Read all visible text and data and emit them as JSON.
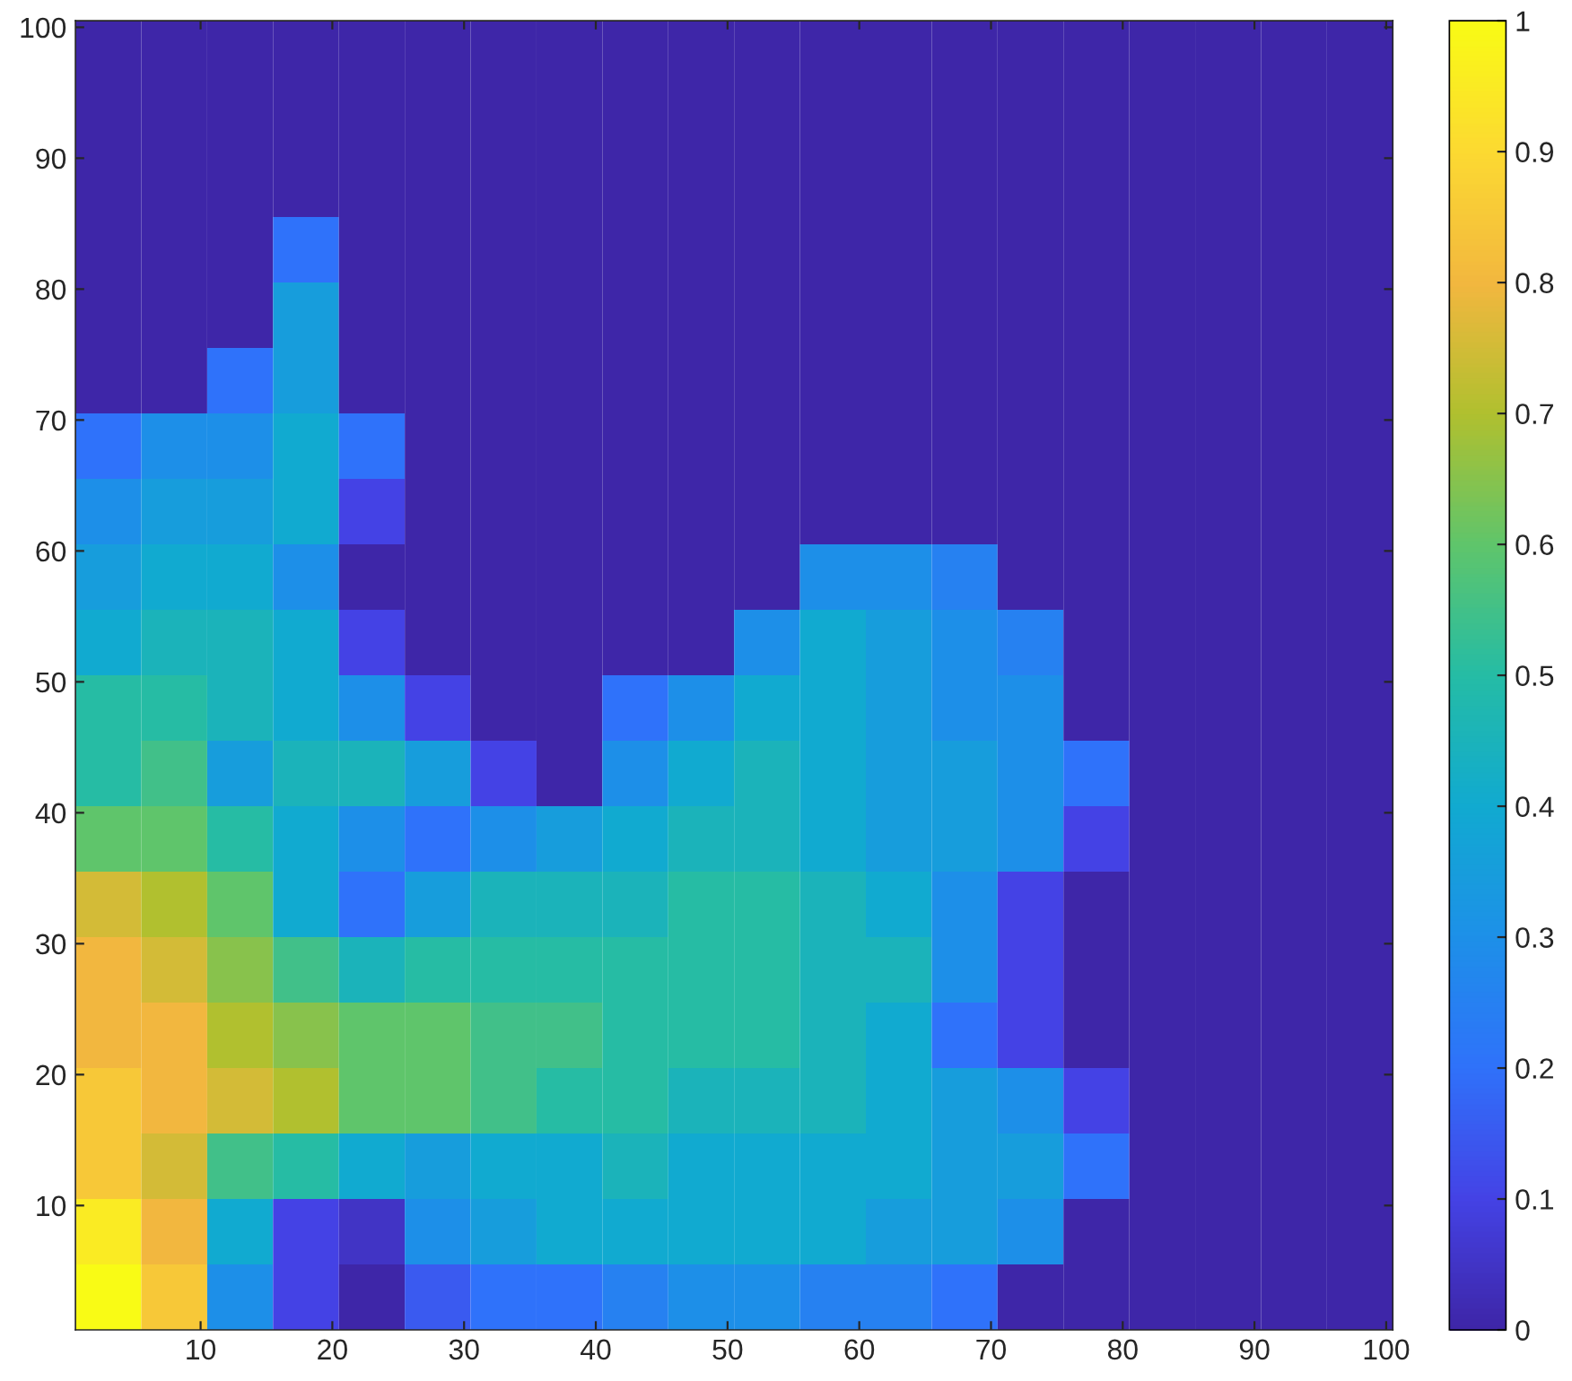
{
  "chart_data": {
    "type": "heatmap",
    "xlim": [
      0.5,
      100.5
    ],
    "ylim": [
      0.5,
      100.5
    ],
    "xticks": [
      10,
      20,
      30,
      40,
      50,
      60,
      70,
      80,
      90,
      100
    ],
    "yticks": [
      10,
      20,
      30,
      40,
      50,
      60,
      70,
      80,
      90,
      100
    ],
    "clim": [
      0,
      1
    ],
    "cticks": [
      0,
      0.1,
      0.2,
      0.3,
      0.4,
      0.5,
      0.6,
      0.7,
      0.8,
      0.9,
      1
    ],
    "cells": [
      [
        0,
        0,
        0,
        0,
        0,
        0,
        0,
        0,
        0,
        0,
        0,
        0,
        0,
        0,
        0,
        0,
        0,
        0,
        0,
        0
      ],
      [
        0,
        0,
        0,
        0,
        0,
        0,
        0,
        0,
        0,
        0,
        0,
        0,
        0,
        0,
        0,
        0,
        0,
        0,
        0,
        0
      ],
      [
        0,
        0,
        0,
        0,
        0,
        0,
        0,
        0,
        0,
        0,
        0,
        0,
        0,
        0,
        0,
        0,
        0,
        0,
        0,
        0
      ],
      [
        0,
        0,
        0,
        0.2,
        0,
        0,
        0,
        0,
        0,
        0,
        0,
        0,
        0,
        0,
        0,
        0,
        0,
        0,
        0,
        0
      ],
      [
        0,
        0,
        0,
        0.35,
        0,
        0,
        0,
        0,
        0,
        0,
        0,
        0,
        0,
        0,
        0,
        0,
        0,
        0,
        0,
        0
      ],
      [
        0,
        0,
        0.2,
        0.35,
        0,
        0,
        0,
        0,
        0,
        0,
        0,
        0,
        0,
        0,
        0,
        0,
        0,
        0,
        0,
        0
      ],
      [
        0.2,
        0.3,
        0.3,
        0.4,
        0.2,
        0,
        0,
        0,
        0,
        0,
        0,
        0,
        0,
        0,
        0,
        0,
        0,
        0,
        0,
        0
      ],
      [
        0.3,
        0.35,
        0.35,
        0.4,
        0.1,
        0,
        0,
        0,
        0,
        0,
        0,
        0,
        0,
        0,
        0,
        0,
        0,
        0,
        0,
        0
      ],
      [
        0.35,
        0.4,
        0.4,
        0.3,
        0,
        0,
        0,
        0,
        0,
        0,
        0,
        0.3,
        0.3,
        0.25,
        0,
        0,
        0,
        0,
        0,
        0
      ],
      [
        0.4,
        0.45,
        0.45,
        0.4,
        0.1,
        0,
        0,
        0,
        0,
        0,
        0.3,
        0.4,
        0.35,
        0.3,
        0.25,
        0,
        0,
        0,
        0,
        0
      ],
      [
        0.5,
        0.5,
        0.45,
        0.4,
        0.3,
        0.1,
        0,
        0,
        0.2,
        0.3,
        0.4,
        0.4,
        0.35,
        0.3,
        0.3,
        0,
        0,
        0,
        0,
        0
      ],
      [
        0.5,
        0.55,
        0.35,
        0.45,
        0.45,
        0.35,
        0.1,
        0,
        0.3,
        0.4,
        0.45,
        0.4,
        0.35,
        0.35,
        0.3,
        0.2,
        0,
        0,
        0,
        0
      ],
      [
        0.6,
        0.6,
        0.5,
        0.4,
        0.3,
        0.2,
        0.3,
        0.35,
        0.4,
        0.45,
        0.45,
        0.4,
        0.35,
        0.35,
        0.3,
        0.1,
        0,
        0,
        0,
        0
      ],
      [
        0.75,
        0.7,
        0.6,
        0.4,
        0.2,
        0.35,
        0.45,
        0.45,
        0.45,
        0.5,
        0.5,
        0.45,
        0.4,
        0.3,
        0.1,
        0,
        0,
        0,
        0,
        0
      ],
      [
        0.8,
        0.75,
        0.65,
        0.55,
        0.45,
        0.5,
        0.5,
        0.5,
        0.5,
        0.5,
        0.5,
        0.45,
        0.45,
        0.3,
        0.1,
        0,
        0,
        0,
        0,
        0
      ],
      [
        0.8,
        0.8,
        0.7,
        0.65,
        0.6,
        0.6,
        0.55,
        0.55,
        0.5,
        0.5,
        0.5,
        0.45,
        0.4,
        0.2,
        0.1,
        0,
        0,
        0,
        0,
        0
      ],
      [
        0.85,
        0.8,
        0.75,
        0.7,
        0.6,
        0.6,
        0.55,
        0.5,
        0.5,
        0.45,
        0.45,
        0.45,
        0.4,
        0.35,
        0.3,
        0.1,
        0,
        0,
        0,
        0
      ],
      [
        0.85,
        0.75,
        0.55,
        0.5,
        0.4,
        0.35,
        0.4,
        0.4,
        0.45,
        0.4,
        0.4,
        0.4,
        0.4,
        0.35,
        0.35,
        0.2,
        0,
        0,
        0,
        0
      ],
      [
        0.95,
        0.8,
        0.4,
        0.1,
        0.05,
        0.3,
        0.35,
        0.4,
        0.4,
        0.4,
        0.4,
        0.4,
        0.35,
        0.35,
        0.3,
        0,
        0,
        0,
        0,
        0
      ],
      [
        1.0,
        0.85,
        0.3,
        0.1,
        0,
        0.15,
        0.2,
        0.2,
        0.25,
        0.3,
        0.3,
        0.25,
        0.25,
        0.2,
        0,
        0,
        0,
        0,
        0,
        0
      ]
    ]
  }
}
